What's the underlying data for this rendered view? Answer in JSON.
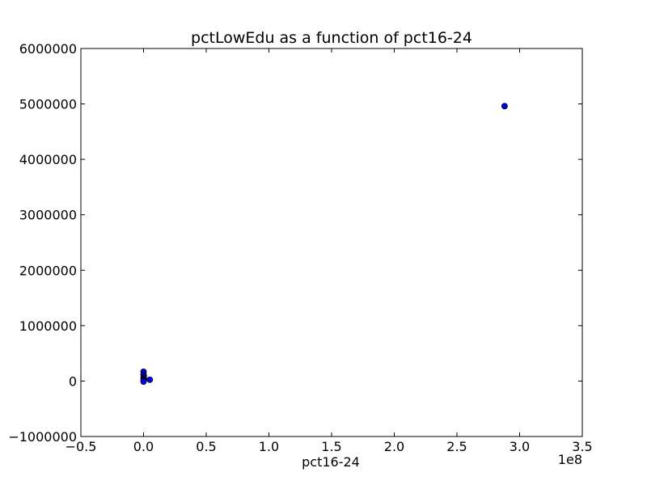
{
  "chart_data": {
    "type": "scatter",
    "title": "pctLowEdu as a function of pct16-24",
    "xlabel": "pct16-24",
    "ylabel": "",
    "x_offset_text": "1e8",
    "x_scale_factor": 100000000,
    "xlim": [
      -0.5,
      3.5
    ],
    "ylim": [
      -1000000,
      6000000
    ],
    "x_ticks": [
      -0.5,
      0.0,
      0.5,
      1.0,
      1.5,
      2.0,
      2.5,
      3.0,
      3.5
    ],
    "x_tick_labels": [
      "−0.5",
      "0.0",
      "0.5",
      "1.0",
      "1.5",
      "2.0",
      "2.5",
      "3.0",
      "3.5"
    ],
    "y_ticks": [
      -1000000,
      0,
      1000000,
      2000000,
      3000000,
      4000000,
      5000000,
      6000000
    ],
    "y_tick_labels": [
      "−1000000",
      "0",
      "1000000",
      "2000000",
      "3000000",
      "4000000",
      "5000000",
      "6000000"
    ],
    "grid": false,
    "marker_color": "#0000ff",
    "marker_edge_color": "#000000",
    "points": [
      {
        "x": 0.0,
        "y": 170000
      },
      {
        "x": 0.0,
        "y": 120000
      },
      {
        "x": 0.002,
        "y": 90000
      },
      {
        "x": 0.0,
        "y": 60000
      },
      {
        "x": 0.003,
        "y": 40000
      },
      {
        "x": 0.0,
        "y": 20000
      },
      {
        "x": 0.001,
        "y": 5000
      },
      {
        "x": 0.0,
        "y": -10000
      },
      {
        "x": 0.05,
        "y": 25000
      },
      {
        "x": 2.88,
        "y": 4960000
      }
    ]
  }
}
